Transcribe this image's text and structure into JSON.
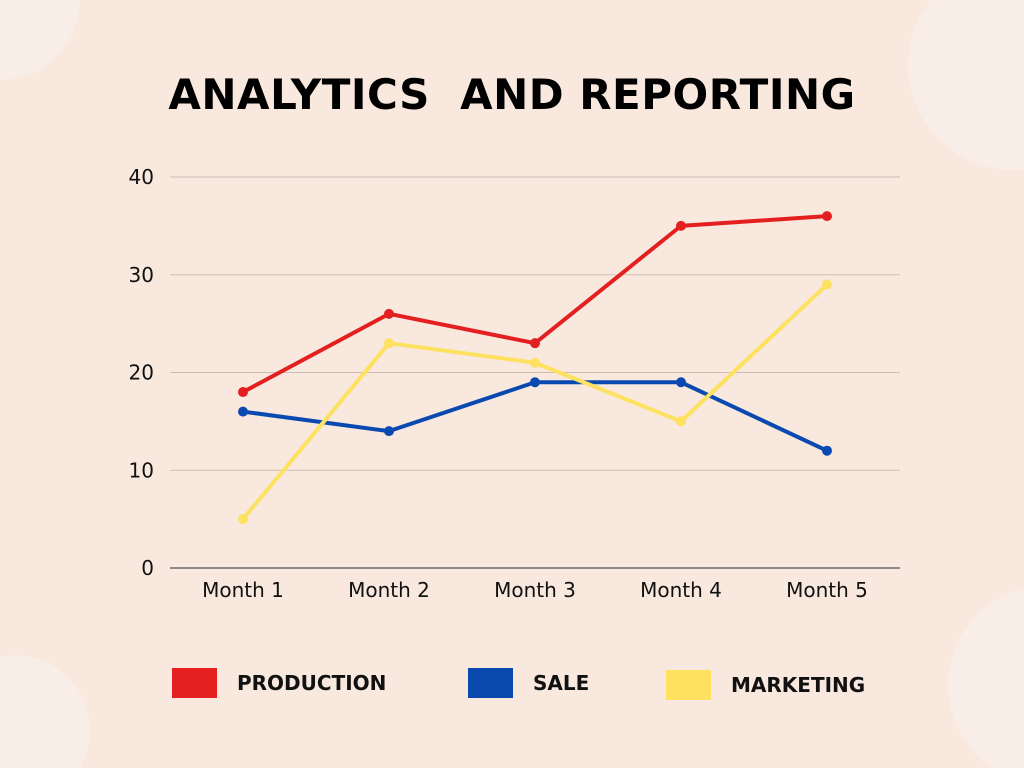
{
  "chart_data": {
    "type": "line",
    "title": "ANALYTICS  AND REPORTING",
    "categories": [
      "Month 1",
      "Month 2",
      "Month 3",
      "Month 4",
      "Month 5"
    ],
    "ylim": [
      0,
      40
    ],
    "yticks": [
      0,
      10,
      20,
      30,
      40
    ],
    "grid": true,
    "legend_position": "bottom",
    "series": [
      {
        "name": "PRODUCTION",
        "color": "#e41f1f",
        "values": [
          18,
          26,
          23,
          35,
          36
        ]
      },
      {
        "name": "SALE",
        "color": "#0a4ab0",
        "values": [
          16,
          14,
          19,
          19,
          12
        ]
      },
      {
        "name": "MARKETING",
        "color": "#fde15f",
        "values": [
          5,
          23,
          21,
          15,
          29
        ]
      }
    ]
  }
}
